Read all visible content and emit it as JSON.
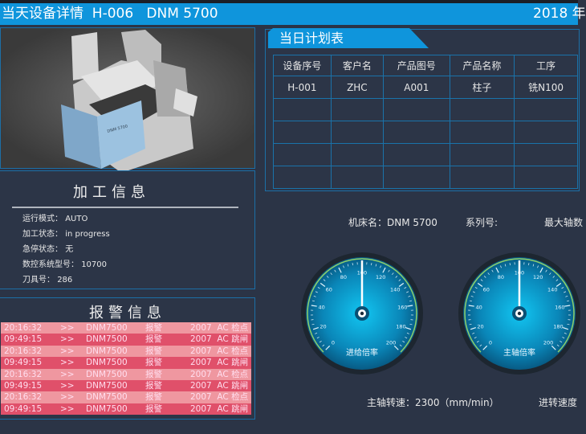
{
  "header": {
    "title": "当天设备详情  H-006   DNM 5700",
    "date": "2018 年"
  },
  "processing": {
    "title": "加工信息",
    "rows": [
      {
        "label": "运行模式：",
        "value": "AUTO"
      },
      {
        "label": "加工状态：",
        "value": "in progress"
      },
      {
        "label": "急停状态：",
        "value": "无"
      },
      {
        "label": "数控系统型号：",
        "value": "10700"
      },
      {
        "label": "刀具号：",
        "value": "286"
      }
    ]
  },
  "alarms": {
    "title": "报警信息",
    "rows": [
      {
        "time": "20:16:32",
        "arrow": ">>",
        "machine": "DNM7500",
        "type": "报警",
        "msg": "2007  AC 检点"
      },
      {
        "time": "09:49:15",
        "arrow": ">>",
        "machine": "DNM7500",
        "type": "报警",
        "msg": "2007  AC 跳闸"
      },
      {
        "time": "20:16:32",
        "arrow": ">>",
        "machine": "DNM7500",
        "type": "报警",
        "msg": "2007  AC 检点"
      },
      {
        "time": "09:49:15",
        "arrow": ">>",
        "machine": "DNM7500",
        "type": "报警",
        "msg": "2007  AC 跳闸"
      },
      {
        "time": "20:16:32",
        "arrow": ">>",
        "machine": "DNM7500",
        "type": "报警",
        "msg": "2007  AC 检点"
      },
      {
        "time": "09:49:15",
        "arrow": ">>",
        "machine": "DNM7500",
        "type": "报警",
        "msg": "2007  AC 跳闸"
      },
      {
        "time": "20:16:32",
        "arrow": ">>",
        "machine": "DNM7500",
        "type": "报警",
        "msg": "2007  AC 检点"
      },
      {
        "time": "09:49:15",
        "arrow": ">>",
        "machine": "DNM7500",
        "type": "报警",
        "msg": "2007  AC 跳闸"
      }
    ],
    "colors": {
      "light": "#ef97a0",
      "dark": "#e0506a"
    }
  },
  "plan": {
    "title": "当日计划表",
    "headers": [
      "设备序号",
      "客户名",
      "产品图号",
      "产品名称",
      "工序"
    ],
    "rows": [
      [
        "H-001",
        "ZHC",
        "A001",
        "柱子",
        "铣N100"
      ],
      [
        "",
        "",
        "",
        "",
        ""
      ],
      [
        "",
        "",
        "",
        "",
        ""
      ],
      [
        "",
        "",
        "",
        "",
        ""
      ],
      [
        "",
        "",
        "",
        "",
        ""
      ]
    ]
  },
  "machine": {
    "name_label": "机床名：DNM 5700",
    "series_label": "系列号:",
    "max_axis_label": "最大轴数",
    "spindle_speed": "主轴转速：2300（mm/min）",
    "feed_speed": "进转速度"
  },
  "gauges": [
    {
      "label": "进给倍率",
      "value": 100,
      "min": 0,
      "max": 200,
      "ticks": [
        "0",
        "20",
        "40",
        "60",
        "80",
        "100",
        "120",
        "140",
        "160",
        "180",
        "200"
      ]
    },
    {
      "label": "主轴倍率",
      "value": 100,
      "min": 0,
      "max": 200,
      "ticks": [
        "0",
        "20",
        "40",
        "60",
        "80",
        "100",
        "120",
        "140",
        "160",
        "180",
        "200"
      ]
    }
  ]
}
